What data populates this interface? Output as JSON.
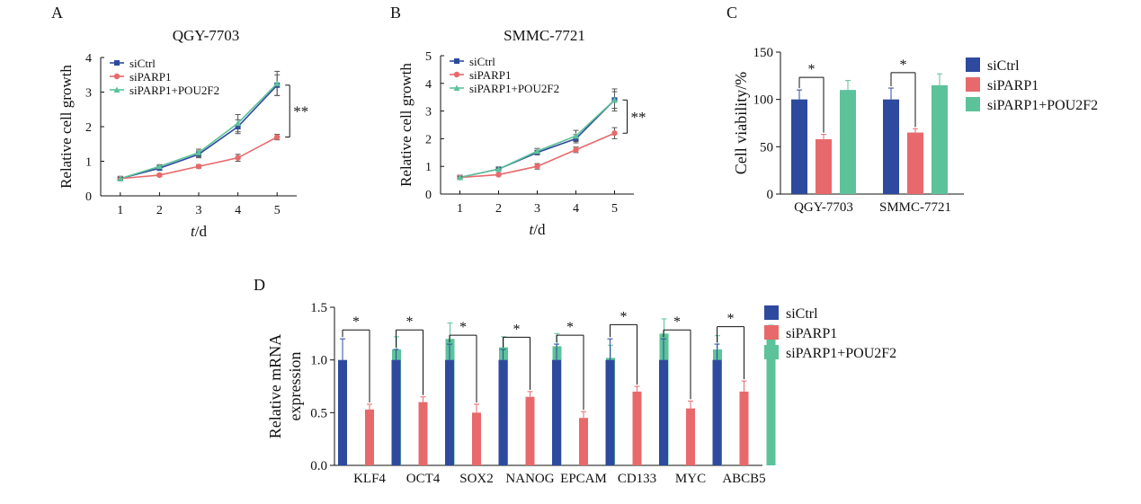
{
  "colors": {
    "siCtrl": "#2e4a9e",
    "siPARP1": "#e8696b",
    "siPARP1_POU2F2": "#5cc29a",
    "axis": "#111111",
    "errorbar_light": "#c9c9c9"
  },
  "chart_data": [
    {
      "panel": "A",
      "type": "line",
      "title": "QGY-7703",
      "xlabel": "t/d",
      "xlabel_italic": "t",
      "xlabel_rest": "/d",
      "ylabel": "Relative cell growth",
      "x": [
        1,
        2,
        3,
        4,
        5
      ],
      "xlim": [
        0.5,
        5.5
      ],
      "ylim": [
        0,
        4
      ],
      "yticks": [
        0,
        1,
        2,
        3,
        4
      ],
      "legend": "top-left",
      "series": [
        {
          "name": "siCtrl",
          "marker": "square",
          "values": [
            0.5,
            0.8,
            1.2,
            2.0,
            3.2
          ],
          "err": [
            0.03,
            0.05,
            0.1,
            0.2,
            0.3
          ]
        },
        {
          "name": "siPARP1",
          "marker": "circle",
          "values": [
            0.5,
            0.6,
            0.85,
            1.1,
            1.7
          ],
          "err": [
            0.03,
            0.04,
            0.05,
            0.1,
            0.08
          ]
        },
        {
          "name": "siPARP1+POU2F2",
          "marker": "triangle",
          "values": [
            0.5,
            0.85,
            1.25,
            2.1,
            3.25
          ],
          "err": [
            0.03,
            0.05,
            0.1,
            0.25,
            0.35
          ]
        }
      ],
      "significance": {
        "text": "**",
        "between_x": 5,
        "from_value": 3.2,
        "to_value": 1.7
      }
    },
    {
      "panel": "B",
      "type": "line",
      "title": "SMMC-7721",
      "xlabel": "t/d",
      "xlabel_italic": "t",
      "xlabel_rest": "/d",
      "ylabel": "Relative cell growth",
      "x": [
        1,
        2,
        3,
        4,
        5
      ],
      "xlim": [
        0.5,
        5.5
      ],
      "ylim": [
        0,
        5
      ],
      "yticks": [
        0,
        1,
        2,
        3,
        4,
        5
      ],
      "legend": "top-left",
      "series": [
        {
          "name": "siCtrl",
          "marker": "square",
          "values": [
            0.6,
            0.9,
            1.5,
            2.0,
            3.4
          ],
          "err": [
            0.03,
            0.05,
            0.08,
            0.15,
            0.4
          ]
        },
        {
          "name": "siPARP1",
          "marker": "circle",
          "values": [
            0.6,
            0.7,
            1.0,
            1.6,
            2.2
          ],
          "err": [
            0.03,
            0.04,
            0.1,
            0.1,
            0.2
          ]
        },
        {
          "name": "siPARP1+POU2F2",
          "marker": "triangle",
          "values": [
            0.6,
            0.9,
            1.55,
            2.1,
            3.4
          ],
          "err": [
            0.03,
            0.05,
            0.1,
            0.2,
            0.3
          ]
        }
      ],
      "significance": {
        "text": "**",
        "between_x": 5,
        "from_value": 3.4,
        "to_value": 2.2
      }
    },
    {
      "panel": "C",
      "type": "bar",
      "title": "",
      "xlabel": "",
      "ylabel": "Cell viability/%",
      "categories": [
        "QGY-7703",
        "SMMC-7721"
      ],
      "ylim": [
        0,
        150
      ],
      "yticks": [
        0,
        50,
        100,
        150
      ],
      "legend": "right",
      "series": [
        {
          "name": "siCtrl",
          "values": [
            100,
            100
          ],
          "err": [
            10,
            12
          ]
        },
        {
          "name": "siPARP1",
          "values": [
            58,
            65
          ],
          "err": [
            5,
            4
          ]
        },
        {
          "name": "siPARP1+POU2F2",
          "values": [
            110,
            115
          ],
          "err": [
            10,
            12
          ]
        }
      ],
      "significance": [
        {
          "text": "*",
          "category": 0
        },
        {
          "text": "*",
          "category": 1
        }
      ]
    },
    {
      "panel": "D",
      "type": "bar",
      "title": "",
      "xlabel": "",
      "ylabel": "Relative mRNA expression",
      "ylabel_lines": [
        "Relative mRNA",
        "expression"
      ],
      "categories": [
        "KLF4",
        "OCT4",
        "SOX2",
        "NANOG",
        "EPCAM",
        "CD133",
        "MYC",
        "ABCB5"
      ],
      "ylim": [
        0,
        1.5
      ],
      "yticks": [
        "0.0",
        "0.5",
        "1.0",
        "1.5"
      ],
      "legend": "right",
      "series": [
        {
          "name": "siCtrl",
          "values": [
            1.0,
            1.0,
            1.0,
            1.0,
            1.0,
            1.0,
            1.0,
            1.0
          ],
          "err": [
            0.2,
            0.1,
            0.15,
            0.1,
            0.15,
            0.2,
            0.2,
            0.15
          ]
        },
        {
          "name": "siPARP1",
          "values": [
            0.53,
            0.6,
            0.5,
            0.65,
            0.45,
            0.7,
            0.54,
            0.7
          ],
          "err": [
            0.05,
            0.05,
            0.08,
            0.05,
            0.06,
            0.05,
            0.07,
            0.1
          ]
        },
        {
          "name": "siPARP1+POU2F2",
          "values": [
            1.1,
            1.2,
            1.12,
            1.13,
            1.02,
            1.25,
            1.1,
            1.23
          ],
          "err": [
            0.12,
            0.15,
            0.1,
            0.12,
            0.12,
            0.14,
            0.13,
            0.1
          ]
        }
      ],
      "significance_text": "*"
    }
  ]
}
